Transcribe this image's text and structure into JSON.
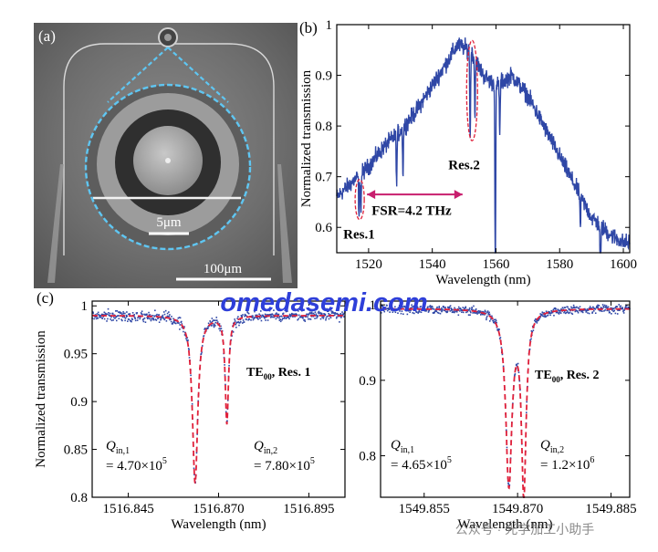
{
  "panel_labels": {
    "a": "(a)",
    "b": "(b)",
    "c": "(c)"
  },
  "sem": {
    "scale_small": "5μm",
    "scale_large": "100μm"
  },
  "watermark": {
    "site": "omedasemi.com",
    "account": "公众号 · 光学加工小助手"
  },
  "colors": {
    "spectrum_blue": "#2f47a6",
    "fit_red": "#e0203a",
    "annotation_magenta": "#c81e6e",
    "sem_highlight": "#5fc6f2",
    "watermark_blue": "#2e3fd9"
  },
  "chart_data": [
    {
      "id": "b",
      "type": "line",
      "xlabel": "Wavelength (nm)",
      "ylabel": "Normalized transmission",
      "xlim": [
        1510,
        1602
      ],
      "ylim": [
        0.55,
        1.0
      ],
      "xticks": [
        1520,
        1540,
        1560,
        1580,
        1600
      ],
      "yticks": [
        0.6,
        0.7,
        0.8,
        0.9,
        1.0
      ],
      "ytick_labels": [
        "0.6",
        "0.7",
        "0.8",
        "0.9",
        "1"
      ],
      "envelope": {
        "x": [
          1510,
          1515,
          1520,
          1525,
          1530,
          1535,
          1540,
          1545,
          1548,
          1552,
          1556,
          1560,
          1565,
          1570,
          1575,
          1580,
          1585,
          1590,
          1595,
          1600
        ],
        "y": [
          0.66,
          0.69,
          0.72,
          0.76,
          0.79,
          0.83,
          0.88,
          0.93,
          0.96,
          0.95,
          0.9,
          0.88,
          0.9,
          0.86,
          0.8,
          0.74,
          0.68,
          0.62,
          0.59,
          0.57
        ]
      },
      "noise_amplitude": 0.025,
      "dips": [
        {
          "x": 1517.0,
          "depth": 0.09
        },
        {
          "x": 1517.6,
          "depth": 0.07
        },
        {
          "x": 1528.8,
          "depth": 0.1
        },
        {
          "x": 1530.8,
          "depth": 0.09
        },
        {
          "x": 1551.9,
          "depth": 0.18
        },
        {
          "x": 1553.4,
          "depth": 0.12
        },
        {
          "x": 1559.8,
          "depth": 0.38
        },
        {
          "x": 1561.2,
          "depth": 0.1
        },
        {
          "x": 1586.5,
          "depth": 0.06
        },
        {
          "x": 1592.8,
          "depth": 0.14
        }
      ],
      "annotations": {
        "res1": "Res.1",
        "res2": "Res.2",
        "fsr": "FSR=4.2 THz"
      }
    },
    {
      "id": "c-left",
      "type": "scatter",
      "xlabel": "Wavelength (nm)",
      "ylabel": "Normalized transmission",
      "xlim": [
        1516.835,
        1516.905
      ],
      "ylim": [
        0.8,
        1.005
      ],
      "xticks": [
        1516.845,
        1516.87,
        1516.895
      ],
      "xtick_labels": [
        "1516.845",
        "1516.870",
        "1516.895"
      ],
      "yticks": [
        0.8,
        0.85,
        0.9,
        0.95,
        1.0
      ],
      "ytick_labels": [
        "0.8",
        "0.85",
        "0.9",
        "0.95",
        "1"
      ],
      "fit_dips": [
        {
          "x": 1516.8635,
          "depth": 0.175,
          "width": 0.0018
        },
        {
          "x": 1516.8723,
          "depth": 0.112,
          "width": 0.0011
        }
      ],
      "baseline": 0.99,
      "label": "TE",
      "label_sub": "00",
      "label_rest": ", Res. 1",
      "q1_symbol": "Q",
      "q1_sub": "in,1",
      "q1_value": "= 4.70×10",
      "q1_exp": "5",
      "q2_symbol": "Q",
      "q2_sub": "in,2",
      "q2_value": "= 7.80×10",
      "q2_exp": "5"
    },
    {
      "id": "c-right",
      "type": "scatter",
      "xlabel": "Wavelength (nm)",
      "ylabel": "",
      "xlim": [
        1549.848,
        1549.888
      ],
      "ylim": [
        0.745,
        1.005
      ],
      "xticks": [
        1549.855,
        1549.87,
        1549.885
      ],
      "xtick_labels": [
        "1549.855",
        "1549.870",
        "1549.885"
      ],
      "yticks": [
        0.8,
        0.9,
        1.0
      ],
      "ytick_labels": [
        "0.8",
        "0.9",
        "1"
      ],
      "fit_dips": [
        {
          "x": 1549.8686,
          "depth": 0.23,
          "width": 0.0012
        },
        {
          "x": 1549.871,
          "depth": 0.24,
          "width": 0.0009
        }
      ],
      "baseline": 0.995,
      "label": "TE",
      "label_sub": "00",
      "label_rest": ", Res. 2",
      "q1_symbol": "Q",
      "q1_sub": "in,1",
      "q1_value": "= 4.65×10",
      "q1_exp": "5",
      "q2_symbol": "Q",
      "q2_sub": "in,2",
      "q2_value": "= 1.2×10",
      "q2_exp": "6"
    }
  ]
}
